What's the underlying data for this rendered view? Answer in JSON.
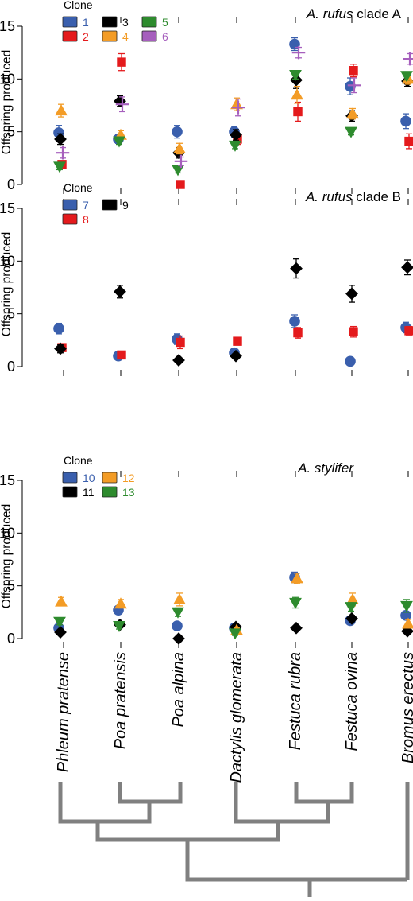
{
  "chart_data": [
    {
      "type": "scatter",
      "title_italic": "A. rufus",
      "title_rest": " clade A",
      "ylabel": "Offspring produced",
      "ylim": [
        0,
        15
      ],
      "yticks": [
        "0",
        "5",
        "10",
        "15"
      ],
      "legend_title": "Clone",
      "categories": [
        "Phleum pratense",
        "Poa pratensis",
        "Poa alpina",
        "Dactylis glomerata",
        "Festuca rubra",
        "Festuca ovina",
        "Bromus erectus"
      ],
      "series": [
        {
          "name": "1",
          "marker": "circle",
          "color": "#3a5fad",
          "values": [
            4.9,
            4.3,
            5.0,
            5.0,
            13.3,
            9.3,
            6.0
          ],
          "err": [
            0.7,
            0.4,
            0.6,
            0.5,
            0.6,
            0.8,
            0.7
          ]
        },
        {
          "name": "2",
          "marker": "square",
          "color": "#e41a1c",
          "values": [
            1.9,
            11.6,
            0.0,
            4.3,
            6.9,
            10.8,
            4.1
          ],
          "err": [
            0.3,
            0.8,
            0.2,
            0.5,
            0.9,
            0.6,
            0.7
          ]
        },
        {
          "name": "3",
          "marker": "diamond",
          "color": "#000000",
          "values": [
            4.3,
            7.9,
            3.0,
            4.7,
            9.9,
            6.5,
            9.8
          ],
          "err": [
            0.5,
            0.5,
            0.5,
            0.5,
            0.8,
            0.5,
            0.5
          ]
        },
        {
          "name": "4",
          "marker": "triangle-up",
          "color": "#f39c26",
          "values": [
            7.0,
            4.7,
            3.4,
            7.6,
            8.5,
            6.7,
            10.0
          ],
          "err": [
            0.6,
            0.4,
            0.5,
            0.6,
            0.8,
            0.5,
            0.5
          ]
        },
        {
          "name": "5",
          "marker": "triangle-down",
          "color": "#2e8b2e",
          "values": [
            1.7,
            4.1,
            1.4,
            3.7,
            10.4,
            5.0,
            10.3
          ],
          "err": [
            0.3,
            0.3,
            0.3,
            0.3,
            0.4,
            0.3,
            0.4
          ]
        },
        {
          "name": "6",
          "marker": "plus",
          "color": "#a65fbd",
          "values": [
            3.0,
            7.6,
            2.2,
            7.3,
            12.5,
            9.4,
            11.9
          ],
          "err": [
            0.5,
            0.7,
            0.4,
            0.8,
            0.5,
            0.7,
            0.5
          ]
        }
      ]
    },
    {
      "type": "scatter",
      "title_italic": "A. rufus",
      "title_rest": " clade B",
      "ylabel": "Offspring produced",
      "ylim": [
        0,
        15
      ],
      "yticks": [
        "0",
        "5",
        "10",
        "15"
      ],
      "legend_title": "Clone",
      "categories": [
        "Phleum pratense",
        "Poa pratensis",
        "Poa alpina",
        "Dactylis glomerata",
        "Festuca rubra",
        "Festuca ovina",
        "Bromus erectus"
      ],
      "series": [
        {
          "name": "7",
          "marker": "circle",
          "color": "#3a5fad",
          "values": [
            3.6,
            1.0,
            2.6,
            1.3,
            4.3,
            0.5,
            3.7
          ],
          "err": [
            0.5,
            0.2,
            0.5,
            0.2,
            0.6,
            0.2,
            0.5
          ]
        },
        {
          "name": "8",
          "marker": "square",
          "color": "#e41a1c",
          "values": [
            1.8,
            1.1,
            2.3,
            2.4,
            3.2,
            3.3,
            3.4
          ],
          "err": [
            0.3,
            0.2,
            0.6,
            0.3,
            0.5,
            0.5,
            0.4
          ]
        },
        {
          "name": "9",
          "marker": "diamond",
          "color": "#000000",
          "values": [
            1.7,
            7.1,
            0.6,
            1.0,
            9.3,
            6.9,
            9.4
          ],
          "err": [
            0.4,
            0.6,
            0.2,
            0.2,
            0.9,
            0.8,
            0.7
          ]
        }
      ]
    },
    {
      "type": "scatter",
      "title_italic": "A. stylifer",
      "title_rest": "",
      "ylabel": "Offspring produced",
      "ylim": [
        0,
        15
      ],
      "yticks": [
        "0",
        "5",
        "10",
        "15"
      ],
      "legend_title": "Clone",
      "categories": [
        "Phleum pratense",
        "Poa pratensis",
        "Poa alpina",
        "Dactylis glomerata",
        "Festuca rubra",
        "Festuca ovina",
        "Bromus erectus"
      ],
      "series": [
        {
          "name": "10",
          "marker": "circle",
          "color": "#3a5fad",
          "values": [
            1.0,
            2.7,
            1.2,
            1.0,
            5.8,
            1.7,
            2.2
          ],
          "err": [
            0.2,
            0.3,
            0.2,
            0.2,
            0.5,
            0.3,
            0.3
          ]
        },
        {
          "name": "11",
          "marker": "diamond",
          "color": "#000000",
          "values": [
            0.6,
            1.3,
            0.0,
            1.1,
            1.0,
            1.9,
            0.7
          ],
          "err": [
            0.2,
            0.2,
            0.1,
            0.2,
            0.2,
            0.3,
            0.2
          ]
        },
        {
          "name": "12",
          "marker": "triangle-up",
          "color": "#f39c26",
          "values": [
            3.5,
            3.3,
            3.7,
            0.8,
            5.7,
            3.7,
            1.4
          ],
          "err": [
            0.4,
            0.4,
            0.6,
            0.2,
            0.5,
            0.6,
            0.4
          ]
        },
        {
          "name": "13",
          "marker": "triangle-down",
          "color": "#2e8b2e",
          "values": [
            1.6,
            1.2,
            2.5,
            0.5,
            3.4,
            3.0,
            3.1
          ],
          "err": [
            0.3,
            0.3,
            0.4,
            0.2,
            0.5,
            0.4,
            0.6
          ]
        }
      ]
    }
  ],
  "xaxis": {
    "labels": [
      "Phleum pratense",
      "Poa pratensis",
      "Poa alpina",
      "Dactylis glomerata",
      "Festuca rubra",
      "Festuca ovina",
      "Bromus erectus"
    ]
  },
  "dendrogram": {
    "color": "#808080"
  }
}
